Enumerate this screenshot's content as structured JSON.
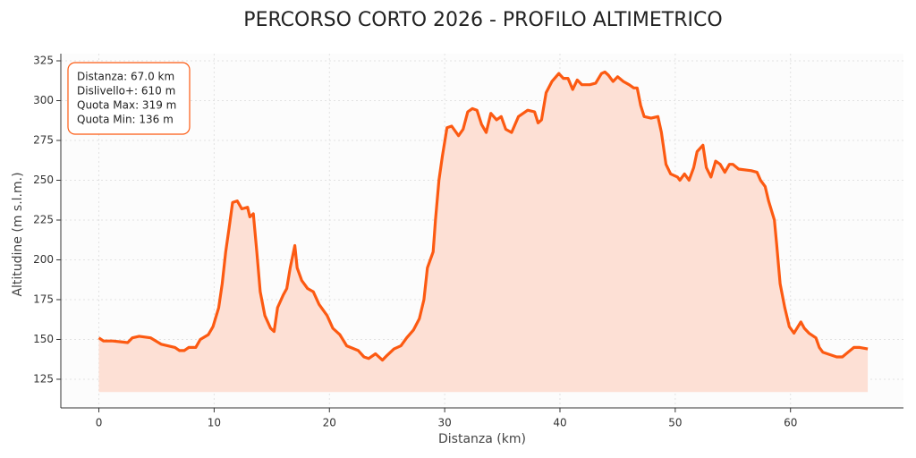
{
  "chart_data": {
    "type": "area_line",
    "title": "PERCORSO CORTO 2026 - PROFILO ALTIMETRICO",
    "xlabel": "Distanza (km)",
    "ylabel": "Altitudine (m s.l.m.)",
    "annotations": [
      "Distanza: 67.0 km",
      "Dislivello+: 610 m",
      "Quota Max: 319 m",
      "Quota Min: 136 m"
    ],
    "color": "#fc5a12",
    "fill_color": "#fde0d5",
    "area_base": 117,
    "grid": true,
    "xlim": [
      -3.3,
      69.8
    ],
    "ylim": [
      107,
      329.5
    ],
    "xticks": [
      0,
      10,
      20,
      30,
      40,
      50,
      60
    ],
    "yticks": [
      125,
      150,
      175,
      200,
      225,
      250,
      275,
      300,
      325
    ],
    "x": [
      0,
      0.4,
      1.2,
      1.9,
      2.5,
      2.9,
      3.5,
      4.5,
      5.4,
      6.6,
      7,
      7.4,
      7.8,
      8.4,
      8.8,
      9.5,
      9.9,
      10.4,
      10.7,
      11,
      11.3,
      11.6,
      12,
      12.4,
      12.9,
      13.1,
      13.4,
      13.7,
      14,
      14.4,
      14.9,
      15.2,
      15.5,
      16,
      16.3,
      16.6,
      17,
      17.2,
      17.6,
      18.1,
      18.6,
      19.1,
      19.8,
      20.3,
      20.9,
      21.5,
      22.5,
      23,
      23.4,
      24,
      24.6,
      25,
      25.6,
      26.2,
      26.7,
      27.3,
      27.8,
      28.2,
      28.5,
      29,
      29.2,
      29.5,
      29.8,
      30.2,
      30.6,
      31.2,
      31.6,
      32,
      32.4,
      32.8,
      33.2,
      33.6,
      34,
      34.5,
      34.9,
      35.3,
      35.8,
      36.4,
      37.2,
      37.8,
      38.1,
      38.4,
      38.8,
      39.3,
      39.9,
      40.3,
      40.7,
      41.1,
      41.5,
      41.9,
      42.6,
      43.1,
      43.6,
      43.9,
      44.2,
      44.6,
      45,
      45.5,
      46,
      46.4,
      46.7,
      47,
      47.3,
      47.9,
      48.5,
      48.8,
      49.2,
      49.6,
      50.2,
      50.4,
      50.8,
      51.2,
      51.6,
      51.9,
      52.4,
      52.7,
      53.1,
      53.5,
      53.9,
      54.3,
      54.7,
      55,
      55.5,
      56.6,
      57.1,
      57.4,
      57.8,
      58.1,
      58.6,
      58.8,
      59.1,
      59.5,
      59.9,
      60.3,
      60.9,
      61.2,
      61.6,
      62.2,
      62.5,
      62.8,
      63.6,
      64,
      64.5,
      65,
      65.5,
      66,
      66.7
    ],
    "values": [
      151,
      149,
      149,
      148.5,
      148,
      151,
      152,
      151,
      147,
      145,
      143,
      143,
      145,
      145,
      150,
      153,
      158,
      170,
      185,
      205,
      220,
      236,
      237,
      232,
      233,
      227,
      229,
      205,
      180,
      165,
      157,
      155,
      170,
      178,
      182,
      195,
      209,
      195,
      187,
      182,
      180,
      172,
      165,
      157,
      153,
      146,
      143,
      139,
      138,
      141,
      137,
      140,
      144,
      146,
      151,
      156,
      163,
      175,
      195,
      205,
      225,
      250,
      265,
      283,
      284,
      278,
      282,
      293,
      295,
      294,
      285,
      280,
      292,
      288,
      290,
      282,
      280,
      290,
      294,
      293,
      286,
      288,
      305,
      312,
      317,
      314,
      314,
      307,
      313,
      310,
      310,
      311,
      317,
      318,
      316,
      312,
      315,
      312,
      310,
      308,
      308,
      297,
      290,
      289,
      290,
      280,
      260,
      254,
      252,
      250,
      254,
      250,
      258,
      268,
      272,
      258,
      252,
      262,
      260,
      255,
      260,
      260,
      257,
      256,
      255,
      250,
      246,
      237,
      225,
      210,
      185,
      170,
      158,
      154,
      161,
      157,
      154,
      151,
      145,
      142,
      140,
      139,
      139,
      142,
      145,
      145,
      144
    ]
  }
}
